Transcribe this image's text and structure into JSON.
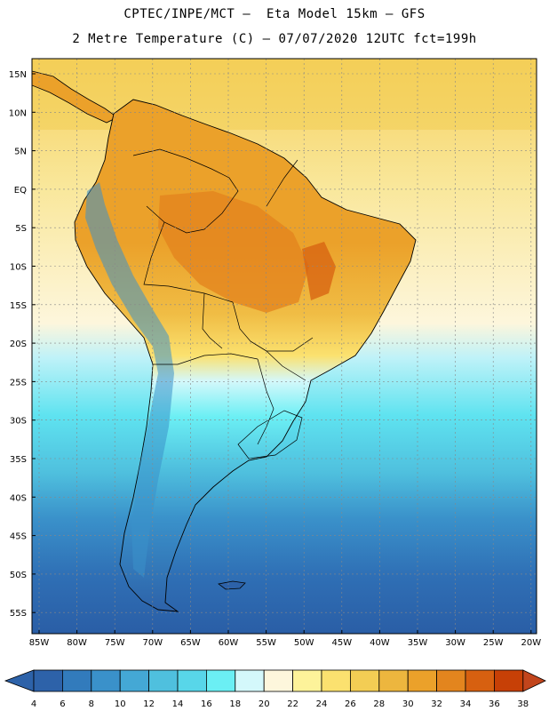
{
  "title": {
    "line1": "CPTEC/INPE/MCT –  Eta Model 15km – GFS",
    "line2": "2 Metre Temperature (C) – 07/07/2020 12UTC fct=199h"
  },
  "map": {
    "variable": "2 Metre Temperature (C)",
    "region": "South America",
    "lat_labels": [
      "15N",
      "10N",
      "5N",
      "EQ",
      "5S",
      "10S",
      "15S",
      "20S",
      "25S",
      "30S",
      "35S",
      "40S",
      "45S",
      "50S",
      "55S"
    ],
    "lon_labels": [
      "85W",
      "80W",
      "75W",
      "70W",
      "65W",
      "60W",
      "55W",
      "50W",
      "45W",
      "40W",
      "35W",
      "30W",
      "25W",
      "20W"
    ],
    "ocean_color": "#3a9fd6",
    "land_warm_color": "#efb02a"
  },
  "colorbar": {
    "labels": [
      "4",
      "6",
      "8",
      "10",
      "12",
      "14",
      "16",
      "18",
      "20",
      "22",
      "24",
      "26",
      "28",
      "30",
      "32",
      "34",
      "36",
      "38"
    ],
    "colors": [
      "#2d62a9",
      "#327bbc",
      "#3a91ca",
      "#44a8d5",
      "#4fc0de",
      "#58d6e9",
      "#6beff4",
      "#d4f8fb",
      "#fdf6dc",
      "#fdf39a",
      "#fbe16f",
      "#f3cd54",
      "#edb63e",
      "#eba12a",
      "#e3851e",
      "#d76010",
      "#c74006"
    ],
    "low_color": "#2d62a9",
    "high_color": "#c2451c"
  }
}
